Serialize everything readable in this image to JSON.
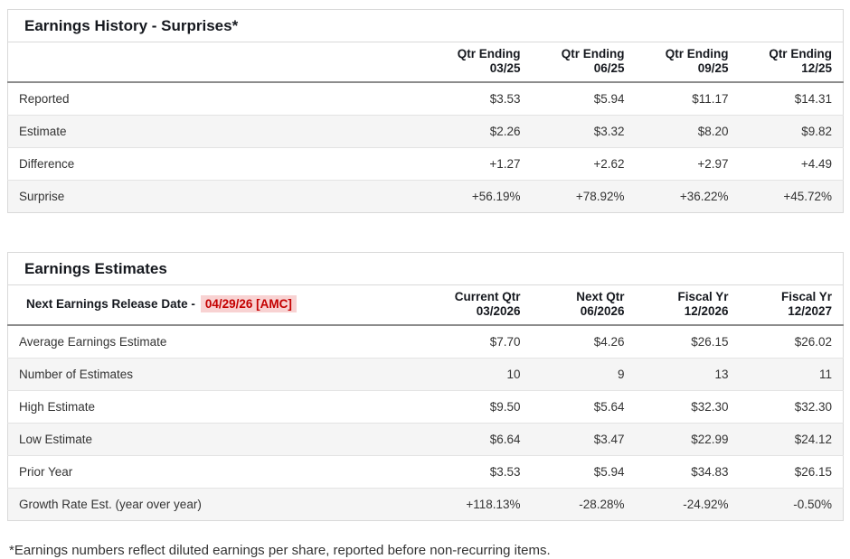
{
  "colors": {
    "positive_green": "#2e9778",
    "negative_red": "#c5334e",
    "release_date_red": "#c40000",
    "release_date_highlight_bg": "#f8d2d2",
    "row_alt_bg": "#f5f5f5"
  },
  "earnings_history": {
    "title": "Earnings History - Surprises*",
    "columns": [
      [
        "Qtr Ending",
        "03/25"
      ],
      [
        "Qtr Ending",
        "06/25"
      ],
      [
        "Qtr Ending",
        "09/25"
      ],
      [
        "Qtr Ending",
        "12/25"
      ]
    ],
    "rows": [
      {
        "label": "Reported",
        "values": [
          "$3.53",
          "$5.94",
          "$11.17",
          "$14.31"
        ]
      },
      {
        "label": "Estimate",
        "values": [
          "$2.26",
          "$3.32",
          "$8.20",
          "$9.82"
        ]
      },
      {
        "label": "Difference",
        "values": [
          "+1.27",
          "+2.62",
          "+2.97",
          "+4.49"
        ]
      },
      {
        "label": "Surprise",
        "values": [
          "+56.19%",
          "+78.92%",
          "+36.22%",
          "+45.72%"
        ]
      }
    ]
  },
  "earnings_estimates": {
    "title": "Earnings Estimates",
    "release_date_label": "Next Earnings Release Date -",
    "release_date_value": "04/29/26 [AMC]",
    "columns": [
      [
        "Current Qtr",
        "03/2026"
      ],
      [
        "Next Qtr",
        "06/2026"
      ],
      [
        "Fiscal Yr",
        "12/2026"
      ],
      [
        "Fiscal Yr",
        "12/2027"
      ]
    ],
    "rows": [
      {
        "label": "Average Earnings Estimate",
        "values": [
          "$7.70",
          "$4.26",
          "$26.15",
          "$26.02"
        ]
      },
      {
        "label": "Number of Estimates",
        "values": [
          "10",
          "9",
          "13",
          "11"
        ]
      },
      {
        "label": "High Estimate",
        "values": [
          "$9.50",
          "$5.64",
          "$32.30",
          "$32.30"
        ]
      },
      {
        "label": "Low Estimate",
        "values": [
          "$6.64",
          "$3.47",
          "$22.99",
          "$24.12"
        ]
      },
      {
        "label": "Prior Year",
        "values": [
          "$3.53",
          "$5.94",
          "$34.83",
          "$26.15"
        ]
      },
      {
        "label": "Growth Rate Est. (year over year)",
        "values": [
          "+118.13%",
          "-28.28%",
          "-24.92%",
          "-0.50%"
        ]
      }
    ]
  },
  "footnote": "*Earnings numbers reflect diluted earnings per share, reported before non-recurring items."
}
